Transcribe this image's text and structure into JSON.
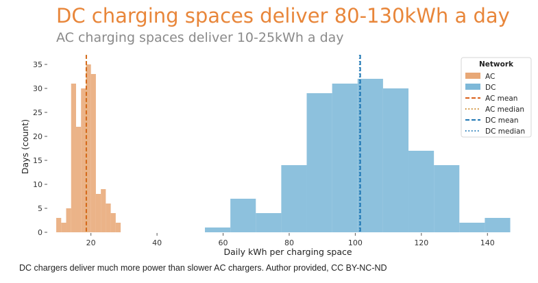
{
  "title": "DC charging spaces deliver 80-130kWh a day",
  "subtitle": "AC charging spaces deliver 10-25kWh a day",
  "caption": "DC chargers deliver much more power than slower AC chargers. Author provided, CC BY-NC-ND",
  "colors": {
    "title": "#e8863a",
    "ac": "#e8a877",
    "dc": "#7db8d8",
    "ac_mean": "#d9601a",
    "ac_median": "#c9821f",
    "dc_mean": "#1f77b4",
    "dc_median": "#1f77b4"
  },
  "chart_data": {
    "type": "histogram",
    "xlabel": "Daily kWh per charging space",
    "ylabel": "Days (count)",
    "xlim": [
      7,
      147
    ],
    "ylim": [
      0,
      37
    ],
    "xticks": [
      20,
      40,
      60,
      80,
      100,
      120,
      140
    ],
    "yticks": [
      0,
      5,
      10,
      15,
      20,
      25,
      30,
      35
    ],
    "grid": false,
    "legend": {
      "title": "Network",
      "position": "top-right",
      "entries": [
        {
          "label": "AC",
          "kind": "patch",
          "color_key": "ac"
        },
        {
          "label": "DC",
          "kind": "patch",
          "color_key": "dc"
        },
        {
          "label": "AC mean",
          "kind": "dashed",
          "color_key": "ac_mean"
        },
        {
          "label": "AC median",
          "kind": "dotted",
          "color_key": "ac_median"
        },
        {
          "label": "DC mean",
          "kind": "dashed",
          "color_key": "dc_mean"
        },
        {
          "label": "DC median",
          "kind": "dotted",
          "color_key": "dc_median"
        }
      ]
    },
    "series": [
      {
        "name": "AC",
        "color_key": "ac",
        "bins": [
          {
            "x0": 9.5,
            "x1": 11.0,
            "count": 3
          },
          {
            "x0": 11.0,
            "x1": 12.5,
            "count": 2
          },
          {
            "x0": 12.5,
            "x1": 14.0,
            "count": 5
          },
          {
            "x0": 14.0,
            "x1": 15.5,
            "count": 31
          },
          {
            "x0": 15.5,
            "x1": 17.0,
            "count": 22
          },
          {
            "x0": 17.0,
            "x1": 18.5,
            "count": 30
          },
          {
            "x0": 18.5,
            "x1": 20.0,
            "count": 35
          },
          {
            "x0": 20.0,
            "x1": 21.5,
            "count": 33
          },
          {
            "x0": 21.5,
            "x1": 23.0,
            "count": 8
          },
          {
            "x0": 23.0,
            "x1": 24.5,
            "count": 9
          },
          {
            "x0": 24.5,
            "x1": 26.0,
            "count": 6
          },
          {
            "x0": 26.0,
            "x1": 27.5,
            "count": 4
          },
          {
            "x0": 27.5,
            "x1": 29.0,
            "count": 2
          }
        ]
      },
      {
        "name": "DC",
        "color_key": "dc",
        "bins": [
          {
            "x0": 54.5,
            "x1": 62.2,
            "count": 1
          },
          {
            "x0": 62.2,
            "x1": 69.9,
            "count": 7
          },
          {
            "x0": 69.9,
            "x1": 77.6,
            "count": 4
          },
          {
            "x0": 77.6,
            "x1": 85.3,
            "count": 14
          },
          {
            "x0": 85.3,
            "x1": 93.0,
            "count": 29
          },
          {
            "x0": 93.0,
            "x1": 100.7,
            "count": 31
          },
          {
            "x0": 100.7,
            "x1": 108.4,
            "count": 32
          },
          {
            "x0": 108.4,
            "x1": 116.1,
            "count": 30
          },
          {
            "x0": 116.1,
            "x1": 123.8,
            "count": 17
          },
          {
            "x0": 123.8,
            "x1": 131.5,
            "count": 14
          },
          {
            "x0": 131.5,
            "x1": 139.2,
            "count": 2
          },
          {
            "x0": 139.2,
            "x1": 146.9,
            "count": 3
          }
        ]
      }
    ],
    "reference_lines": [
      {
        "label": "AC mean",
        "x": 18.6,
        "style": "dashed",
        "color_key": "ac_mean"
      },
      {
        "label": "AC median",
        "x": 18.6,
        "style": "dotted",
        "color_key": "ac_median"
      },
      {
        "label": "DC mean",
        "x": 101.5,
        "style": "dashed",
        "color_key": "dc_mean"
      },
      {
        "label": "DC median",
        "x": 101.3,
        "style": "dotted",
        "color_key": "dc_median"
      }
    ]
  }
}
